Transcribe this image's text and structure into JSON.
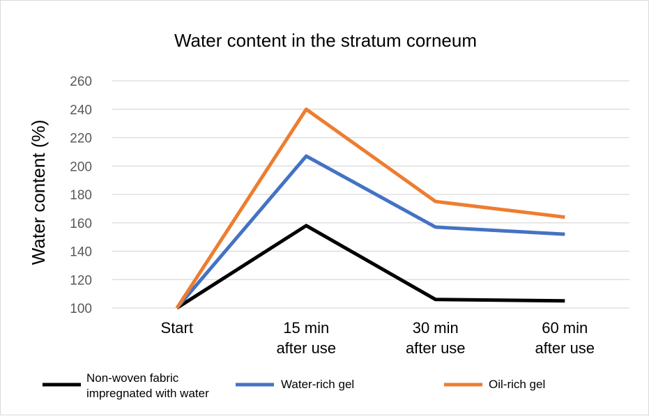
{
  "chart_data": {
    "type": "line",
    "title": "Water content in the stratum corneum",
    "xlabel": "",
    "ylabel": "Water content (%)",
    "ylim": [
      100,
      260
    ],
    "yticks": [
      100,
      120,
      140,
      160,
      180,
      200,
      220,
      240,
      260
    ],
    "categories": [
      [
        "Start"
      ],
      [
        "15 min",
        "after use"
      ],
      [
        "30 min",
        "after use"
      ],
      [
        "60 min",
        "after use"
      ]
    ],
    "grid": true,
    "legend_position": "bottom",
    "series": [
      {
        "name": "Non-woven fabric impregnated with water",
        "legend_lines": [
          "Non-woven fabric",
          "impregnated with water"
        ],
        "color": "#000000",
        "values": [
          100,
          158,
          106,
          105
        ]
      },
      {
        "name": "Water-rich gel",
        "legend_lines": [
          "Water-rich gel"
        ],
        "color": "#4472c4",
        "values": [
          100,
          207,
          157,
          152
        ]
      },
      {
        "name": "Oil-rich gel",
        "legend_lines": [
          "Oil-rich gel"
        ],
        "color": "#ed7d31",
        "values": [
          100,
          240,
          175,
          164
        ]
      }
    ]
  }
}
